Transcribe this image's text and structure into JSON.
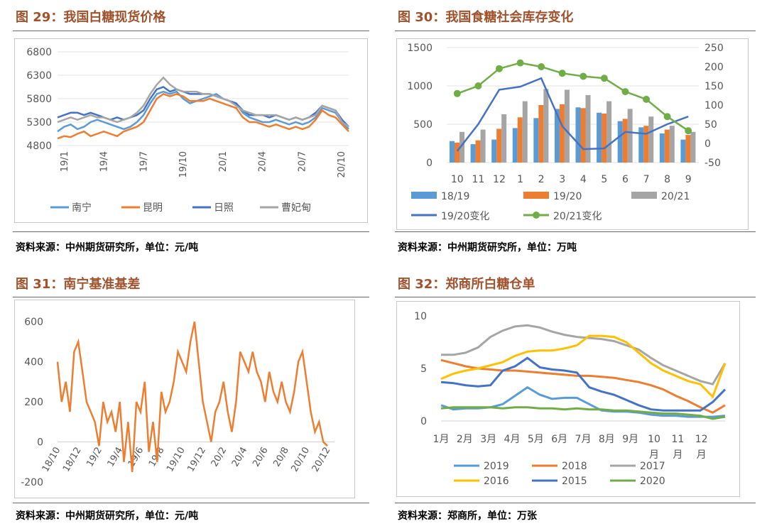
{
  "fig29": {
    "title": "图 29：我国白糖现货价格",
    "source": "资料来源：中州期货研究所，单位：元/吨",
    "chart_data": {
      "type": "line",
      "yticks": [
        4800,
        5300,
        5800,
        6300,
        6800
      ],
      "ylim": [
        4800,
        6800
      ],
      "x_labels": [
        "19/1",
        "19/4",
        "19/7",
        "19/10",
        "20/1",
        "20/4",
        "20/7",
        "20/10"
      ],
      "series": [
        {
          "name": "南宁",
          "color": "#5b9bd5",
          "values": [
            5100,
            5200,
            5250,
            5150,
            5200,
            5300,
            5350,
            5300,
            5250,
            5200,
            5150,
            5200,
            5300,
            5450,
            5700,
            5900,
            5950,
            5900,
            5950,
            5800,
            5700,
            5750,
            5800,
            5850,
            5900,
            5800,
            5750,
            5700,
            5500,
            5400,
            5350,
            5300,
            5300,
            5350,
            5300,
            5250,
            5300,
            5250,
            5300,
            5400,
            5600,
            5550,
            5500,
            5300,
            5150
          ]
        },
        {
          "name": "昆明",
          "color": "#ed7d31",
          "values": [
            4950,
            5000,
            4980,
            5050,
            5100,
            5000,
            5050,
            5100,
            5050,
            5000,
            5100,
            5150,
            5200,
            5300,
            5550,
            5800,
            5900,
            5850,
            5900,
            5850,
            5750,
            5750,
            5750,
            5800,
            5750,
            5700,
            5650,
            5600,
            5400,
            5300,
            5300,
            5250,
            5200,
            5250,
            5200,
            5150,
            5200,
            5150,
            5200,
            5350,
            5550,
            5450,
            5400,
            5250,
            5100
          ]
        },
        {
          "name": "日照",
          "color": "#4472c4",
          "values": [
            5400,
            5450,
            5500,
            5500,
            5450,
            5500,
            5450,
            5400,
            5350,
            5400,
            5350,
            5400,
            5450,
            5550,
            5800,
            6000,
            6050,
            5950,
            6000,
            5950,
            5900,
            5900,
            5900,
            5900,
            5850,
            5800,
            5750,
            5700,
            5550,
            5450,
            5450,
            5450,
            5400,
            5450,
            5400,
            5350,
            5400,
            5350,
            5400,
            5500,
            5650,
            5600,
            5550,
            5350,
            5200
          ]
        },
        {
          "name": "曹妃甸",
          "color": "#a5a5a5",
          "values": [
            5300,
            5350,
            5400,
            5350,
            5400,
            5450,
            5400,
            5400,
            5350,
            5300,
            5350,
            5400,
            5500,
            5650,
            5900,
            6100,
            6250,
            6100,
            6000,
            5950,
            5950,
            5950,
            5900,
            5900,
            5850,
            5800,
            5750,
            5650,
            5550,
            5500,
            5450,
            5450,
            5450,
            5450,
            5400,
            5350,
            5400,
            5350,
            5400,
            5450,
            5650,
            5600,
            5550,
            5300,
            5200
          ]
        }
      ]
    }
  },
  "fig30": {
    "title": "图 30：我国食糖社会库存变化",
    "source": "资料来源：中州期货研究所，单位：万吨",
    "chart_data": {
      "type": "bar",
      "categories": [
        "10",
        "11",
        "12",
        "1",
        "2",
        "3",
        "4",
        "5",
        "6",
        "7",
        "8",
        "9"
      ],
      "yticks_left": [
        0,
        500,
        1000,
        1500
      ],
      "ylim_left": [
        0,
        1500
      ],
      "yticks_right": [
        -50,
        0,
        50,
        100,
        150,
        200,
        250
      ],
      "ylim_right": [
        -50,
        250
      ],
      "bar_series": [
        {
          "name": "18/19",
          "color": "#5b9bd5",
          "values": [
            280,
            240,
            300,
            450,
            580,
            700,
            720,
            650,
            540,
            460,
            380,
            300
          ]
        },
        {
          "name": "19/20",
          "color": "#ed7d31",
          "values": [
            260,
            290,
            440,
            590,
            750,
            760,
            710,
            640,
            570,
            480,
            430,
            360
          ]
        },
        {
          "name": "20/21",
          "color": "#a5a5a5",
          "values": [
            400,
            430,
            630,
            800,
            960,
            950,
            880,
            800,
            700,
            600,
            480,
            400
          ]
        }
      ],
      "line_series": [
        {
          "name": "19/20变化",
          "color": "#4472c4",
          "marker": false,
          "values": [
            -20,
            50,
            140,
            148,
            170,
            45,
            -15,
            -13,
            30,
            25,
            50,
            70
          ]
        },
        {
          "name": "20/21变化",
          "color": "#70ad47",
          "marker": true,
          "values": [
            130,
            150,
            195,
            210,
            200,
            183,
            175,
            170,
            135,
            115,
            70,
            33
          ]
        }
      ]
    }
  },
  "fig31": {
    "title": "图 31：南宁基准基差",
    "source": "资料来源：中州期货研究所，单位：元/吨",
    "chart_data": {
      "type": "line",
      "yticks": [
        -200,
        0,
        200,
        400,
        600
      ],
      "ylim": [
        -200,
        650
      ],
      "x_labels": [
        "18/10",
        "18/12",
        "19/2",
        "19/4",
        "19/6",
        "19/8",
        "19/10",
        "19/12",
        "20/2",
        "20/4",
        "20/6",
        "20/8",
        "20/10",
        "20/12"
      ],
      "series": [
        {
          "name": "",
          "color": "#ed7d31",
          "values": [
            400,
            200,
            300,
            150,
            450,
            500,
            350,
            200,
            150,
            100,
            -20,
            200,
            100,
            150,
            50,
            200,
            -100,
            100,
            -150,
            200,
            150,
            300,
            -50,
            100,
            -100,
            250,
            150,
            200,
            300,
            450,
            400,
            350,
            500,
            600,
            400,
            200,
            100,
            0,
            150,
            200,
            300,
            150,
            50,
            200,
            450,
            400,
            350,
            450,
            350,
            300,
            200,
            350,
            250,
            200,
            300,
            200,
            150,
            250,
            400,
            450,
            300,
            150,
            50,
            100,
            0,
            -20
          ]
        }
      ]
    }
  },
  "fig32": {
    "title": "图 32：郑商所白糖仓单",
    "source": "资料来源：郑商所，单位：万张",
    "chart_data": {
      "type": "line",
      "yticks": [
        0,
        5,
        10
      ],
      "ylim": [
        0,
        10
      ],
      "x_labels": [
        "1月",
        "2月",
        "3月",
        "4月",
        "5月",
        "6月",
        "7月",
        "8月",
        "9月",
        "10月",
        "11月",
        "12月"
      ],
      "series": [
        {
          "name": "2019",
          "color": "#5b9bd5",
          "values": [
            1.5,
            1.1,
            1.2,
            1.2,
            1.3,
            1.6,
            2.4,
            3.2,
            2.5,
            2.1,
            2.2,
            2.2,
            1.6,
            1.0,
            0.9,
            0.9,
            0.8,
            0.6,
            0.5,
            0.5,
            0.4,
            0.4,
            0.4,
            0.5
          ]
        },
        {
          "name": "2018",
          "color": "#ed7d31",
          "values": [
            5.8,
            5.5,
            5.2,
            5.0,
            4.9,
            4.8,
            4.8,
            4.7,
            4.6,
            4.5,
            4.4,
            4.3,
            4.3,
            4.2,
            4.1,
            3.9,
            3.7,
            3.4,
            3.0,
            2.4,
            1.9,
            1.3,
            0.8,
            1.5
          ]
        },
        {
          "name": "2017",
          "color": "#a5a5a5",
          "values": [
            6.3,
            6.3,
            6.5,
            7.0,
            8.0,
            8.6,
            9.0,
            9.1,
            8.9,
            8.5,
            8.2,
            8.0,
            7.9,
            7.8,
            7.6,
            7.2,
            6.8,
            6.0,
            5.3,
            4.8,
            4.3,
            3.8,
            3.5,
            5.5
          ]
        },
        {
          "name": "2016",
          "color": "#ffc000",
          "values": [
            4.0,
            4.5,
            4.8,
            5.0,
            5.3,
            5.6,
            6.2,
            6.6,
            6.7,
            6.7,
            6.9,
            7.2,
            8.1,
            8.1,
            8.0,
            7.5,
            6.5,
            5.5,
            4.8,
            4.3,
            3.8,
            3.5,
            2.3,
            5.5
          ]
        },
        {
          "name": "2015",
          "color": "#4472c4",
          "values": [
            3.7,
            3.6,
            3.4,
            3.3,
            3.4,
            4.8,
            5.2,
            6.0,
            5.1,
            4.9,
            4.8,
            4.6,
            3.2,
            2.8,
            2.5,
            2.0,
            1.5,
            1.1,
            1.0,
            1.0,
            1.0,
            1.0,
            1.8,
            3.0
          ]
        },
        {
          "name": "2020",
          "color": "#70ad47",
          "values": [
            1.2,
            1.3,
            1.3,
            1.3,
            1.3,
            1.2,
            1.3,
            1.3,
            1.2,
            1.2,
            1.1,
            1.2,
            1.1,
            1.1,
            1.0,
            1.0,
            0.9,
            0.8,
            0.7,
            0.7,
            0.6,
            0.5,
            0.2,
            0.4
          ]
        }
      ]
    }
  }
}
